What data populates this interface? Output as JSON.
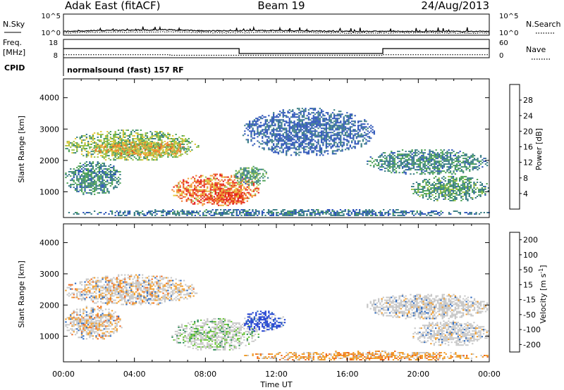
{
  "header": {
    "radar": "Adak East (fitACF)",
    "beam": "Beam 19",
    "date": "24/Aug/2013"
  },
  "panels": {
    "nsky": {
      "left_label": "N.Sky",
      "right_label": "N.Search",
      "ticks_left": [
        "10^5",
        "10^0"
      ],
      "ticks_right": [
        "10^5",
        "10^0"
      ]
    },
    "freq": {
      "left_label_1": "Freq.",
      "left_label_2": "[MHz]",
      "right_label": "Nave",
      "ticks_left": [
        "18",
        "8"
      ],
      "ticks_right": [
        "60",
        "0"
      ]
    },
    "cpid": {
      "label": "CPID",
      "text": "normalsound (fast) 157 RF"
    }
  },
  "chart_data": [
    {
      "type": "line",
      "title": "N.Sky / N.Search",
      "x_range_hours": [
        0,
        24
      ],
      "series": [
        {
          "name": "N.Sky",
          "style": "solid",
          "x": [
            0,
            2,
            4,
            6,
            8,
            10,
            12,
            14,
            16,
            18,
            20,
            22,
            24
          ],
          "log10_values": [
            0.9,
            1.1,
            1.2,
            1.3,
            1.0,
            1.1,
            1.1,
            1.0,
            0.9,
            0.9,
            0.9,
            0.9,
            0.9
          ]
        },
        {
          "name": "N.Search",
          "style": "dotted",
          "x": [
            0,
            2,
            4,
            6,
            8,
            10,
            12,
            14,
            16,
            18,
            20,
            22,
            24
          ],
          "log10_values": [
            0.5,
            0.7,
            0.7,
            0.8,
            0.6,
            0.6,
            0.7,
            0.6,
            0.5,
            0.5,
            0.6,
            0.5,
            0.5
          ]
        }
      ],
      "ylim_log10": [
        0,
        5
      ]
    },
    {
      "type": "line",
      "title": "Freq / Nave",
      "x_range_hours": [
        0,
        24
      ],
      "series": [
        {
          "name": "Freq.",
          "unit": "MHz",
          "style": "solid",
          "x": [
            0,
            9.9,
            9.9,
            18,
            18,
            24
          ],
          "values": [
            13.0,
            13.0,
            10.3,
            10.3,
            13.0,
            13.0
          ]
        },
        {
          "name": "Nave",
          "style": "dotted",
          "x": [
            0,
            6,
            6,
            9.9,
            9.9,
            18,
            18,
            24
          ],
          "values": [
            10,
            10,
            8,
            8,
            8,
            8,
            10,
            10
          ]
        }
      ],
      "ylim_left": [
        8,
        18
      ],
      "ylim_right": [
        0,
        60
      ]
    },
    {
      "type": "heatmap",
      "title": "Power",
      "xlabel": "",
      "ylabel": "Slant Range [km]",
      "x_range_hours": [
        0,
        24
      ],
      "y_range_km": [
        180,
        4600
      ],
      "yticks": [
        1000,
        2000,
        3000,
        4000
      ],
      "colorbar": {
        "label": "Power [dB]",
        "range": [
          0,
          32
        ],
        "ticks": [
          4,
          8,
          12,
          16,
          20,
          24,
          28
        ],
        "colors": [
          "#1433e6",
          "#2d55b8",
          "#3c7f86",
          "#4fa358",
          "#9ec24a",
          "#e2c83c",
          "#f4a13a",
          "#f07a2a",
          "#ea4a22",
          "#e3201b"
        ]
      },
      "echo_regions": [
        {
          "t0": 0.0,
          "t1": 7.6,
          "r0": 1950,
          "r1": 2950,
          "level": 0.45
        },
        {
          "t0": 1.5,
          "t1": 7.2,
          "r0": 2100,
          "r1": 2600,
          "level": 0.65
        },
        {
          "t0": 0.0,
          "t1": 3.3,
          "r0": 850,
          "r1": 1950,
          "level": 0.3
        },
        {
          "t0": 6.0,
          "t1": 11.0,
          "r0": 500,
          "r1": 1550,
          "level": 0.85
        },
        {
          "t0": 8.0,
          "t1": 10.5,
          "r0": 550,
          "r1": 1000,
          "level": 1.0
        },
        {
          "t0": 9.5,
          "t1": 11.5,
          "r0": 1150,
          "r1": 1800,
          "level": 0.35
        },
        {
          "t0": 10.0,
          "t1": 17.5,
          "r0": 2100,
          "r1": 3650,
          "level": 0.2
        },
        {
          "t0": 17.0,
          "t1": 24.0,
          "r0": 1500,
          "r1": 2350,
          "level": 0.3
        },
        {
          "t0": 19.5,
          "t1": 24.0,
          "r0": 650,
          "r1": 1500,
          "level": 0.35
        },
        {
          "t0": 0.0,
          "t1": 24.0,
          "r0": 180,
          "r1": 430,
          "level": 0.25
        }
      ]
    },
    {
      "type": "heatmap",
      "title": "Velocity",
      "xlabel": "Time UT",
      "ylabel": "Slant Range [km]",
      "x_range_hours": [
        0,
        24
      ],
      "xticks": [
        "00:00",
        "04:00",
        "08:00",
        "12:00",
        "16:00",
        "20:00",
        "00:00"
      ],
      "y_range_km": [
        180,
        4600
      ],
      "yticks": [
        1000,
        2000,
        3000,
        4000
      ],
      "colorbar": {
        "label": "Velocity [m s^-1]",
        "ticks": [
          200,
          100,
          50,
          15,
          -15,
          -50,
          -100,
          -200
        ],
        "colors": [
          "#1f3fd0",
          "#2e6ac0",
          "#2f8f58",
          "#6cc43a",
          "#c8c8c8",
          "#f19d2c",
          "#ef6a1f",
          "#e0251b"
        ]
      },
      "echo_regions": [
        {
          "t0": 0.0,
          "t1": 7.6,
          "r0": 1950,
          "r1": 2950,
          "class": "gray_orange"
        },
        {
          "t0": 0.0,
          "t1": 3.3,
          "r0": 850,
          "r1": 1950,
          "class": "gray_orange"
        },
        {
          "t0": 6.0,
          "t1": 11.0,
          "r0": 500,
          "r1": 1550,
          "class": "gray_green"
        },
        {
          "t0": 10.0,
          "t1": 12.5,
          "r0": 1100,
          "r1": 1800,
          "class": "blue"
        },
        {
          "t0": 17.0,
          "t1": 24.0,
          "r0": 1500,
          "r1": 2350,
          "class": "gray"
        },
        {
          "t0": 19.5,
          "t1": 24.0,
          "r0": 650,
          "r1": 1500,
          "class": "gray"
        },
        {
          "t0": 10.0,
          "t1": 24.0,
          "r0": 180,
          "r1": 500,
          "class": "orange_floor"
        }
      ]
    }
  ]
}
